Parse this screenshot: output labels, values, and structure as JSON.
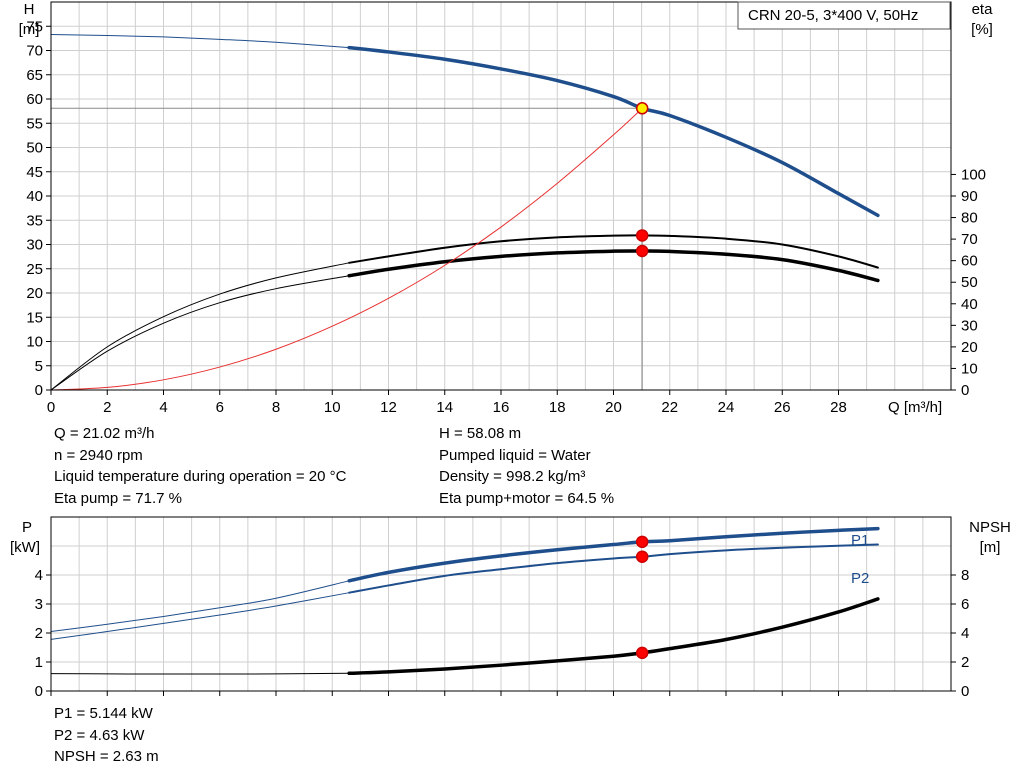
{
  "chart_data": [
    {
      "type": "line",
      "legend_box": "CRN 20-5, 3*400 V, 50Hz",
      "y_axis_left": {
        "label_line1": "H",
        "label_line2": "[m]",
        "range": [
          0,
          80
        ],
        "ticks": [
          0,
          5,
          10,
          15,
          20,
          25,
          30,
          35,
          40,
          45,
          50,
          55,
          60,
          65,
          70,
          75
        ]
      },
      "y_axis_right": {
        "label_line1": "eta",
        "label_line2": "[%]",
        "range": [
          0,
          180
        ],
        "ticks": [
          0,
          10,
          20,
          30,
          40,
          50,
          60,
          70,
          80,
          90,
          100
        ]
      },
      "x_axis": {
        "label": "Q [m³/h]",
        "range": [
          0,
          32
        ],
        "ticks": [
          0,
          2,
          4,
          6,
          8,
          10,
          12,
          14,
          16,
          18,
          20,
          22,
          24,
          26,
          28
        ]
      },
      "grid": true,
      "duty_point": {
        "x": 21.02,
        "y": 58.08
      },
      "series": [
        {
          "id": "head",
          "axis": "left",
          "color": "#1f4e8c",
          "extrapolated_until": 10.6,
          "x": [
            0,
            2,
            4,
            6,
            8,
            10.6,
            12,
            14,
            16,
            18,
            20,
            21.02,
            22,
            24,
            26,
            28,
            29.4
          ],
          "y": [
            73.3,
            73.1,
            72.8,
            72.3,
            71.7,
            70.6,
            69.7,
            68.2,
            66.2,
            63.8,
            60.5,
            58.08,
            56.6,
            52.1,
            46.9,
            40.5,
            36.0
          ]
        },
        {
          "id": "eta-pump",
          "axis": "right",
          "color": "#000000",
          "extrapolated_until": 10.6,
          "x": [
            0,
            2,
            4,
            6,
            8,
            10.6,
            12,
            14,
            16,
            18,
            20,
            21.02,
            22,
            24,
            26,
            28,
            29.4
          ],
          "y": [
            0,
            20,
            34,
            44.5,
            52,
            59,
            62,
            66,
            69,
            70.8,
            71.6,
            71.7,
            71.5,
            70.2,
            67.5,
            62,
            56.8
          ]
        },
        {
          "id": "eta-pump-motor",
          "axis": "right",
          "color": "#000000",
          "extrapolated_until": 10.6,
          "x": [
            0,
            2,
            4,
            6,
            8,
            10.6,
            12,
            14,
            16,
            18,
            20,
            21.02,
            22,
            24,
            26,
            28,
            29.4
          ],
          "y": [
            0,
            18,
            31,
            40.5,
            47,
            53,
            56,
            59.5,
            62,
            63.6,
            64.4,
            64.5,
            64.3,
            63,
            60.5,
            55.5,
            50.8
          ]
        },
        {
          "id": "system-curve",
          "axis": "left",
          "color": "#e83030",
          "x": [
            0,
            2,
            4,
            6,
            8,
            10,
            12,
            14,
            16,
            18,
            20,
            21.02
          ],
          "y": [
            0,
            0.53,
            2.1,
            4.73,
            8.4,
            13.15,
            18.9,
            25.7,
            33.6,
            42.6,
            52.6,
            58.08
          ]
        }
      ],
      "markers": [
        {
          "series": "head",
          "x": 21.02,
          "y": 58.08,
          "fill": "#ffee00",
          "stroke": "#cc0000"
        },
        {
          "series": "eta-pump",
          "x": 21.02,
          "y": 71.7,
          "fill": "#ff0000",
          "stroke": "#cc0000"
        },
        {
          "series": "eta-pump-motor",
          "x": 21.02,
          "y": 64.5,
          "fill": "#ff0000",
          "stroke": "#cc0000"
        }
      ]
    },
    {
      "type": "line",
      "y_axis_left": {
        "label_line1": "P",
        "label_line2": "[kW]",
        "range": [
          0,
          6
        ],
        "ticks": [
          0,
          1,
          2,
          3,
          4
        ]
      },
      "y_axis_right": {
        "label_line1": "NPSH",
        "label_line2": "[m]",
        "range": [
          0,
          12
        ],
        "ticks": [
          0,
          2,
          4,
          6,
          8
        ]
      },
      "x_axis": {
        "range": [
          0,
          32
        ],
        "ticks": [
          0,
          2,
          4,
          6,
          8,
          10,
          12,
          14,
          16,
          18,
          20,
          22,
          24,
          26,
          28
        ]
      },
      "grid": true,
      "series": [
        {
          "id": "P1",
          "name": "P1",
          "axis": "left",
          "color": "#1f4e8c",
          "extrapolated_until": 10.6,
          "x": [
            0,
            2,
            4,
            6,
            8,
            10.6,
            12,
            14,
            16,
            18,
            20,
            21.02,
            22,
            24,
            26,
            28,
            29.4
          ],
          "y": [
            2.05,
            2.3,
            2.57,
            2.87,
            3.2,
            3.8,
            4.09,
            4.41,
            4.66,
            4.87,
            5.05,
            5.144,
            5.18,
            5.32,
            5.44,
            5.54,
            5.6
          ]
        },
        {
          "id": "P2",
          "name": "P2",
          "axis": "left",
          "color": "#1f4e8c",
          "extrapolated_until": 10.6,
          "x": [
            0,
            2,
            4,
            6,
            8,
            10.6,
            12,
            14,
            16,
            18,
            20,
            21.02,
            22,
            24,
            26,
            28,
            29.4
          ],
          "y": [
            1.78,
            2.05,
            2.33,
            2.62,
            2.93,
            3.39,
            3.64,
            3.97,
            4.2,
            4.41,
            4.57,
            4.63,
            4.72,
            4.85,
            4.94,
            5.01,
            5.05
          ]
        },
        {
          "id": "NPSH",
          "axis": "right",
          "color": "#000000",
          "extrapolated_until": 10.6,
          "x": [
            0,
            2,
            4,
            6,
            8,
            10.6,
            12,
            14,
            16,
            18,
            20,
            21.02,
            22,
            24,
            26,
            28,
            29.4
          ],
          "y": [
            1.2,
            1.18,
            1.17,
            1.17,
            1.18,
            1.22,
            1.32,
            1.52,
            1.78,
            2.08,
            2.4,
            2.63,
            2.92,
            3.55,
            4.4,
            5.45,
            6.35
          ]
        }
      ],
      "markers": [
        {
          "series": "P1",
          "x": 21.02,
          "y": 5.144,
          "fill": "#ff0000",
          "stroke": "#cc0000"
        },
        {
          "series": "P2",
          "x": 21.02,
          "y": 4.63,
          "fill": "#ff0000",
          "stroke": "#cc0000"
        },
        {
          "series": "NPSH",
          "x": 21.02,
          "y": 2.63,
          "fill": "#ff0000",
          "stroke": "#cc0000"
        }
      ]
    }
  ],
  "top_info": {
    "left": [
      "Q = 21.02 m³/h",
      "n = 2940 rpm",
      "Liquid temperature during operation = 20 °C",
      "Eta pump = 71.7 %"
    ],
    "right": [
      "H = 58.08 m",
      "Pumped liquid = Water",
      "Density = 998.2 kg/m³",
      "Eta pump+motor = 64.5 %"
    ]
  },
  "bottom_info": [
    "P1 = 5.144 kW",
    "P2 = 4.63 kW",
    "NPSH = 2.63 m"
  ]
}
